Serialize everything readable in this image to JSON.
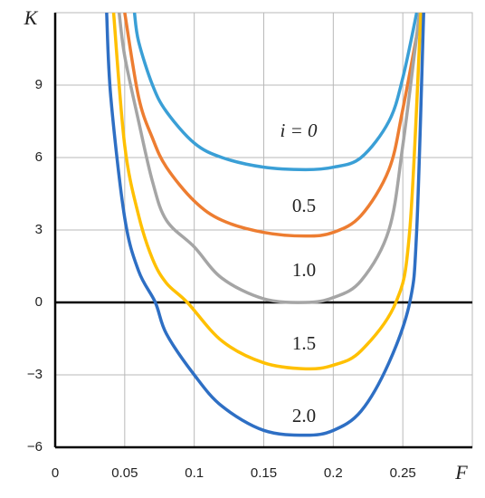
{
  "chart_data": {
    "type": "line",
    "x_label": "F",
    "y_label": "K",
    "xlim": [
      0,
      0.3
    ],
    "xticks": [
      0,
      0.05,
      0.1,
      0.15,
      0.2,
      0.25
    ],
    "ylim": [
      -6,
      12
    ],
    "yticks": [
      {
        "value": -6,
        "label": "−6"
      },
      {
        "value": -3,
        "label": "−3"
      },
      0,
      3,
      6,
      9
    ],
    "grid": true,
    "annotations": [
      "i = 0",
      "0.5",
      "1.0",
      "1.5",
      "2.0"
    ],
    "series": [
      {
        "name": "i = 0",
        "color": "#3a9fd6",
        "x": [
          0.057,
          0.06,
          0.07,
          0.08,
          0.1,
          0.12,
          0.15,
          0.18,
          0.2,
          0.22,
          0.24,
          0.25,
          0.26
        ],
        "values": [
          12,
          10.8,
          9.0,
          7.9,
          6.6,
          6.0,
          5.6,
          5.5,
          5.6,
          6.0,
          7.5,
          9.3,
          12
        ]
      },
      {
        "name": "0.5",
        "color": "#ed7d31",
        "x": [
          0.05,
          0.06,
          0.07,
          0.08,
          0.1,
          0.12,
          0.15,
          0.18,
          0.2,
          0.22,
          0.24,
          0.25,
          0.263
        ],
        "values": [
          12,
          8.5,
          6.8,
          5.6,
          4.2,
          3.4,
          2.9,
          2.75,
          2.9,
          3.6,
          5.5,
          8.0,
          12
        ]
      },
      {
        "name": "1.0",
        "color": "#a5a5a5",
        "x": [
          0.046,
          0.05,
          0.06,
          0.07,
          0.08,
          0.1,
          0.12,
          0.15,
          0.18,
          0.2,
          0.22,
          0.24,
          0.25,
          0.262
        ],
        "values": [
          12,
          10.2,
          7.5,
          5.0,
          3.4,
          2.3,
          1.0,
          0.15,
          0,
          0.2,
          0.9,
          3.0,
          6.5,
          12
        ]
      },
      {
        "name": "1.5",
        "color": "#ffc000",
        "x": [
          0.042,
          0.05,
          0.06,
          0.07,
          0.08,
          0.095,
          0.12,
          0.15,
          0.18,
          0.2,
          0.22,
          0.245,
          0.255,
          0.263
        ],
        "values": [
          12,
          6.5,
          3.6,
          1.8,
          0.8,
          0,
          -1.6,
          -2.5,
          -2.75,
          -2.6,
          -2.0,
          0,
          3,
          12
        ]
      },
      {
        "name": "2.0",
        "color": "#2e6fc4",
        "x": [
          0.037,
          0.04,
          0.05,
          0.06,
          0.072,
          0.08,
          0.1,
          0.12,
          0.15,
          0.18,
          0.2,
          0.22,
          0.24,
          0.255,
          0.26,
          0.265
        ],
        "values": [
          12,
          8.5,
          3.5,
          1.3,
          0,
          -1.3,
          -3,
          -4.3,
          -5.3,
          -5.5,
          -5.3,
          -4.5,
          -2.5,
          0,
          3,
          12
        ]
      }
    ]
  }
}
